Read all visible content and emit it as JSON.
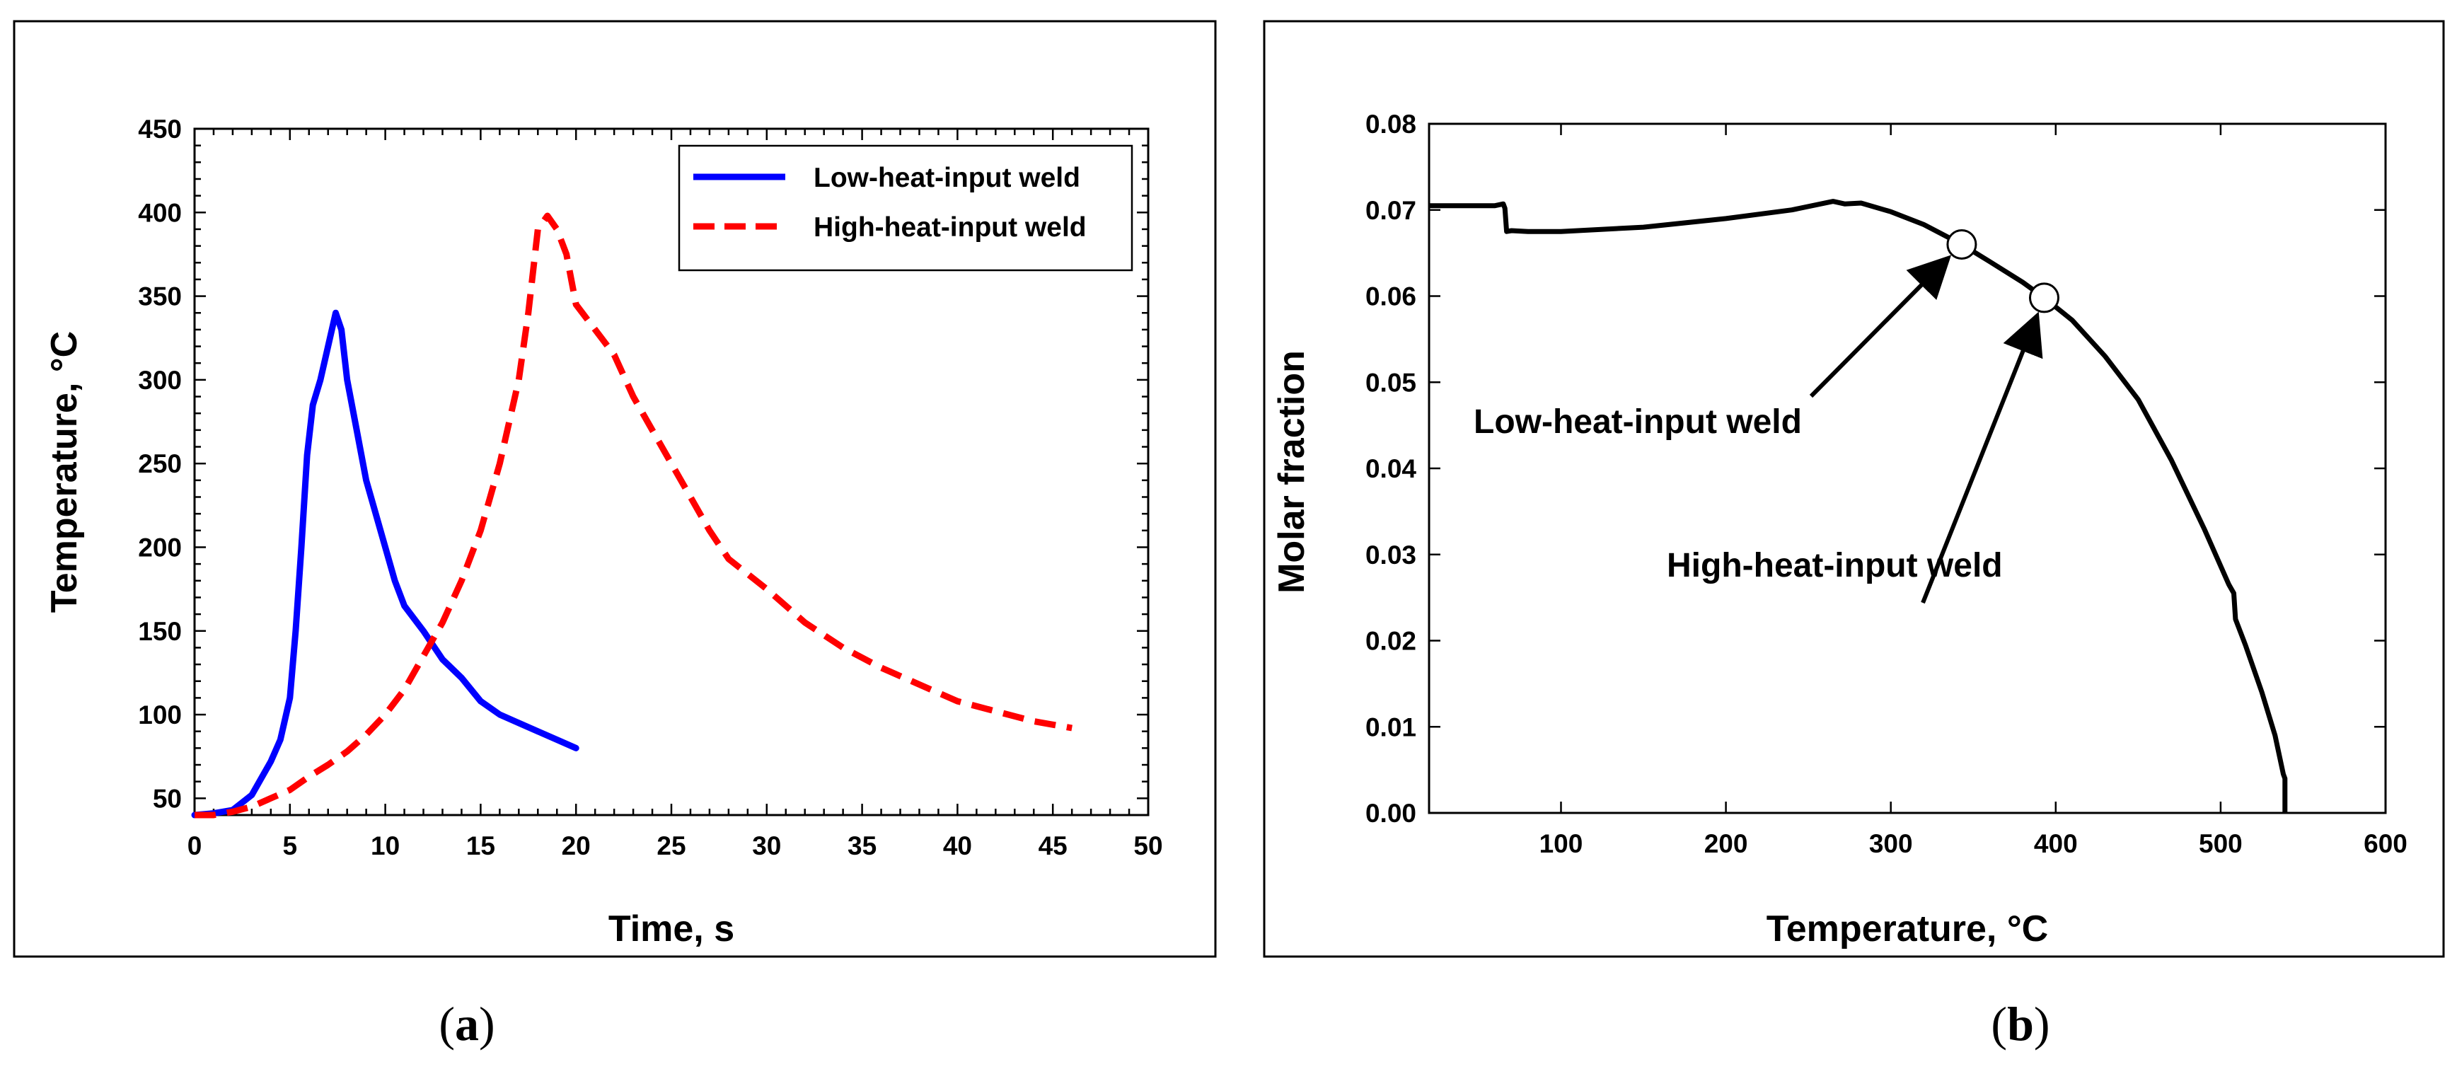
{
  "panels": {
    "a": "a",
    "b": "b"
  },
  "chart_data": [
    {
      "type": "line",
      "panel": "a",
      "title": "",
      "xlabel": "Time, s",
      "ylabel": "Temperature, °C",
      "xlim": [
        0,
        50
      ],
      "ylim": [
        40,
        450
      ],
      "xticks": [
        0,
        5,
        10,
        15,
        20,
        25,
        30,
        35,
        40,
        45,
        50
      ],
      "yticks": [
        50,
        100,
        150,
        200,
        250,
        300,
        350,
        400,
        450
      ],
      "legend_position": "top-right",
      "grid": false,
      "series": [
        {
          "name": "Low-heat-input weld",
          "color": "#0000ff",
          "style": "solid",
          "points": [
            [
              0,
              40
            ],
            [
              1,
              41
            ],
            [
              2,
              43
            ],
            [
              3,
              52
            ],
            [
              4,
              72
            ],
            [
              4.5,
              85
            ],
            [
              5,
              110
            ],
            [
              5.3,
              150
            ],
            [
              5.6,
              200
            ],
            [
              5.9,
              255
            ],
            [
              6.2,
              285
            ],
            [
              6.6,
              300
            ],
            [
              7,
              320
            ],
            [
              7.4,
              340
            ],
            [
              7.7,
              330
            ],
            [
              8,
              300
            ],
            [
              8.5,
              270
            ],
            [
              9,
              240
            ],
            [
              9.5,
              220
            ],
            [
              10,
              200
            ],
            [
              10.5,
              180
            ],
            [
              11,
              165
            ],
            [
              12,
              150
            ],
            [
              13,
              133
            ],
            [
              14,
              122
            ],
            [
              15,
              108
            ],
            [
              16,
              100
            ],
            [
              17,
              95
            ],
            [
              18,
              90
            ],
            [
              19,
              85
            ],
            [
              20,
              80
            ]
          ]
        },
        {
          "name": "High-heat-input weld",
          "color": "#ff0000",
          "style": "dashed",
          "points": [
            [
              0,
              40
            ],
            [
              1,
              40
            ],
            [
              2,
              42
            ],
            [
              3,
              45
            ],
            [
              4,
              50
            ],
            [
              5,
              55
            ],
            [
              6,
              63
            ],
            [
              7,
              70
            ],
            [
              8,
              78
            ],
            [
              9,
              88
            ],
            [
              10,
              100
            ],
            [
              11,
              115
            ],
            [
              12,
              135
            ],
            [
              13,
              155
            ],
            [
              14,
              180
            ],
            [
              15,
              210
            ],
            [
              16,
              250
            ],
            [
              17,
              300
            ],
            [
              17.5,
              340
            ],
            [
              18,
              390
            ],
            [
              18.5,
              398
            ],
            [
              19,
              390
            ],
            [
              19.5,
              375
            ],
            [
              20,
              345
            ],
            [
              21,
              330
            ],
            [
              22,
              315
            ],
            [
              23,
              290
            ],
            [
              24,
              270
            ],
            [
              25,
              250
            ],
            [
              26,
              230
            ],
            [
              27,
              210
            ],
            [
              28,
              193
            ],
            [
              30,
              175
            ],
            [
              32,
              155
            ],
            [
              34,
              140
            ],
            [
              36,
              128
            ],
            [
              38,
              118
            ],
            [
              40,
              108
            ],
            [
              42,
              102
            ],
            [
              44,
              96
            ],
            [
              46,
              92
            ]
          ]
        }
      ]
    },
    {
      "type": "line",
      "panel": "b",
      "title": "",
      "xlabel": "Temperature, °C",
      "ylabel": "Molar fraction",
      "xlim": [
        20,
        600
      ],
      "ylim": [
        0,
        0.08
      ],
      "xticks": [
        100,
        200,
        300,
        400,
        500,
        600
      ],
      "yticks": [
        0.0,
        0.01,
        0.02,
        0.03,
        0.04,
        0.05,
        0.06,
        0.07,
        0.08
      ],
      "ytick_labels": [
        "0.00",
        "0.01",
        "0.02",
        "0.03",
        "0.04",
        "0.05",
        "0.06",
        "0.07",
        "0.08"
      ],
      "grid": false,
      "series": [
        {
          "color": "#000000",
          "style": "solid",
          "points": [
            [
              20,
              0.0705
            ],
            [
              40,
              0.0705
            ],
            [
              60,
              0.0705
            ],
            [
              65,
              0.0707
            ],
            [
              66,
              0.0702
            ],
            [
              67,
              0.0675
            ],
            [
              70,
              0.0676
            ],
            [
              80,
              0.0675
            ],
            [
              100,
              0.0675
            ],
            [
              150,
              0.068
            ],
            [
              200,
              0.069
            ],
            [
              240,
              0.07
            ],
            [
              265,
              0.071
            ],
            [
              272,
              0.0707
            ],
            [
              282,
              0.0708
            ],
            [
              300,
              0.0698
            ],
            [
              320,
              0.0683
            ],
            [
              343,
              0.066
            ],
            [
              360,
              0.064
            ],
            [
              380,
              0.0616
            ],
            [
              393,
              0.0598
            ],
            [
              410,
              0.0572
            ],
            [
              430,
              0.053
            ],
            [
              450,
              0.048
            ],
            [
              470,
              0.041
            ],
            [
              490,
              0.033
            ],
            [
              505,
              0.0265
            ],
            [
              508,
              0.0255
            ],
            [
              509,
              0.0225
            ],
            [
              515,
              0.0195
            ],
            [
              525,
              0.014
            ],
            [
              533,
              0.009
            ],
            [
              538,
              0.0045
            ],
            [
              539,
              0.004
            ],
            [
              539,
              0.0
            ]
          ]
        }
      ],
      "markers": [
        [
          343,
          0.066
        ],
        [
          393,
          0.0598
        ]
      ],
      "annotations": [
        {
          "text": "Low-heat-input  weld",
          "target": [
            343,
            0.066
          ]
        },
        {
          "text": "High-heat-input  weld",
          "target": [
            393,
            0.0598
          ]
        }
      ]
    }
  ]
}
